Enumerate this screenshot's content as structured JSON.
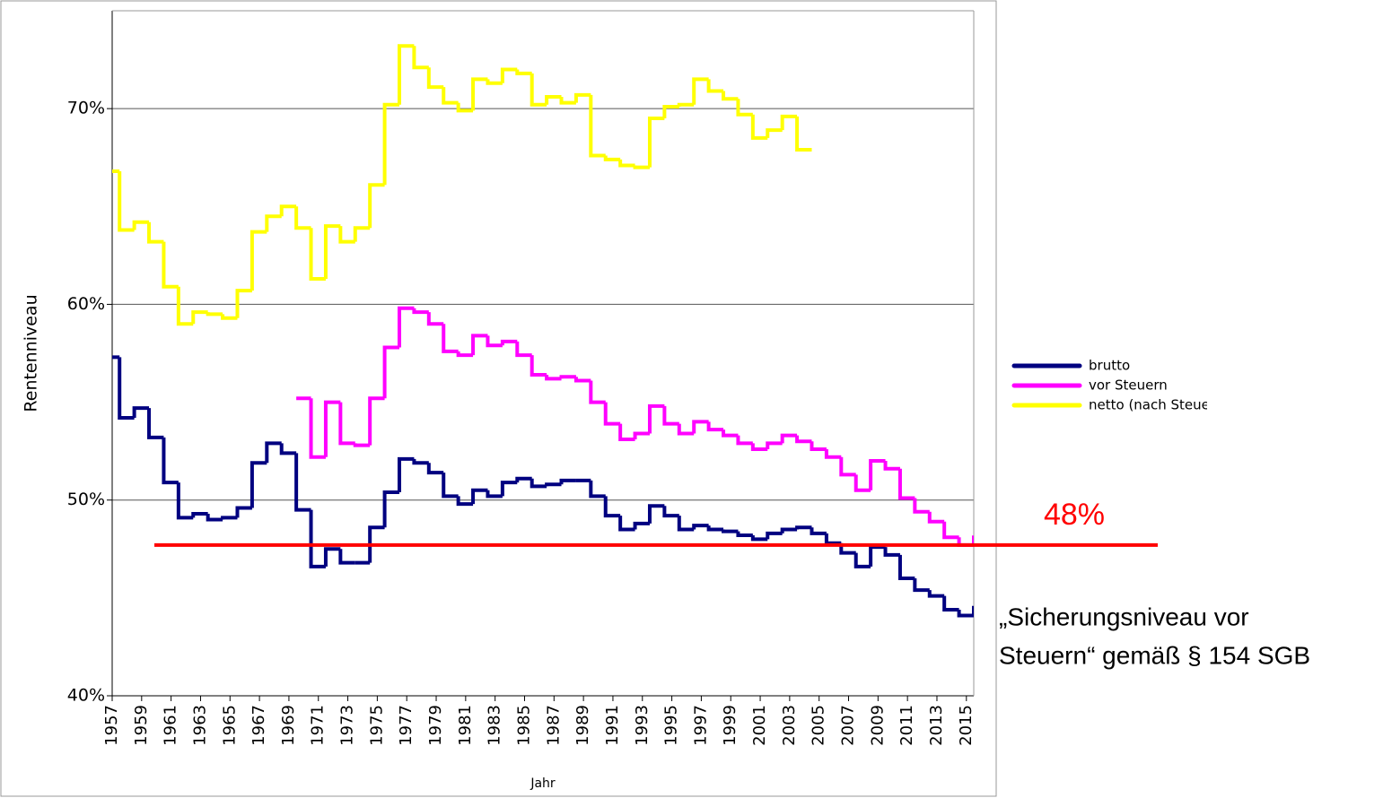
{
  "chart_data": {
    "type": "step",
    "x_label": "Jahr",
    "y_label": "Rentenniveau",
    "x": [
      1957,
      1958,
      1959,
      1960,
      1961,
      1962,
      1963,
      1964,
      1965,
      1966,
      1967,
      1968,
      1969,
      1970,
      1971,
      1972,
      1973,
      1974,
      1975,
      1976,
      1977,
      1978,
      1979,
      1980,
      1981,
      1982,
      1983,
      1984,
      1985,
      1986,
      1987,
      1988,
      1989,
      1990,
      1991,
      1992,
      1993,
      1994,
      1995,
      1996,
      1997,
      1998,
      1999,
      2000,
      2001,
      2002,
      2003,
      2004,
      2005,
      2006,
      2007,
      2008,
      2009,
      2010,
      2011,
      2012,
      2013,
      2014,
      2015,
      2016
    ],
    "series": [
      {
        "name": "brutto",
        "color": "#000080",
        "values": [
          57.3,
          54.2,
          54.7,
          53.2,
          50.9,
          49.1,
          49.3,
          49.0,
          49.1,
          49.6,
          51.9,
          52.9,
          52.4,
          49.5,
          46.6,
          47.5,
          46.8,
          46.8,
          48.6,
          50.4,
          52.1,
          51.9,
          51.4,
          50.2,
          49.8,
          50.5,
          50.2,
          50.9,
          51.1,
          50.7,
          50.8,
          51.0,
          51.0,
          50.2,
          49.2,
          48.5,
          48.8,
          49.7,
          49.2,
          48.5,
          48.7,
          48.5,
          48.4,
          48.2,
          48.0,
          48.3,
          48.5,
          48.6,
          48.3,
          47.8,
          47.3,
          46.6,
          47.6,
          47.2,
          46.0,
          45.4,
          45.1,
          44.4,
          44.1,
          44.5
        ]
      },
      {
        "name": "vor Steuern",
        "color": "#ff00ff",
        "values": [
          null,
          null,
          null,
          null,
          null,
          null,
          null,
          null,
          null,
          null,
          null,
          null,
          null,
          55.2,
          52.2,
          55.0,
          52.9,
          52.8,
          55.2,
          57.8,
          59.8,
          59.6,
          59.0,
          57.6,
          57.4,
          58.4,
          57.9,
          58.1,
          57.4,
          56.4,
          56.2,
          56.3,
          56.1,
          55.0,
          53.9,
          53.1,
          53.4,
          54.8,
          53.9,
          53.4,
          54.0,
          53.6,
          53.3,
          52.9,
          52.6,
          52.9,
          53.3,
          53.0,
          52.6,
          52.2,
          51.3,
          50.5,
          52.0,
          51.6,
          50.1,
          49.4,
          48.9,
          48.1,
          47.7,
          48.1
        ]
      },
      {
        "name": "netto (nach Steuern)",
        "color": "#ffff00",
        "values": [
          66.8,
          63.8,
          64.2,
          63.2,
          60.9,
          59.0,
          59.6,
          59.5,
          59.3,
          60.7,
          63.7,
          64.5,
          65.0,
          63.9,
          61.3,
          64.0,
          63.2,
          63.9,
          66.1,
          70.2,
          73.2,
          72.1,
          71.1,
          70.3,
          69.9,
          71.5,
          71.3,
          72.0,
          71.8,
          70.2,
          70.6,
          70.3,
          70.7,
          67.6,
          67.4,
          67.1,
          67.0,
          69.5,
          70.1,
          70.2,
          71.5,
          70.9,
          70.5,
          69.7,
          68.5,
          68.9,
          69.6,
          67.9,
          null,
          null,
          null,
          null,
          null,
          null,
          null,
          null,
          null,
          null,
          null,
          null
        ]
      }
    ],
    "xlim": [
      1957,
      2015.5
    ],
    "xticks": [
      1957,
      1959,
      1961,
      1963,
      1965,
      1967,
      1969,
      1971,
      1973,
      1975,
      1977,
      1979,
      1981,
      1983,
      1985,
      1987,
      1989,
      1991,
      1993,
      1995,
      1997,
      1999,
      2001,
      2003,
      2005,
      2007,
      2009,
      2011,
      2013,
      2015
    ],
    "ylim": [
      40,
      75
    ],
    "yticks": [
      {
        "value": 40,
        "label": "40%"
      },
      {
        "value": 50,
        "label": "50%"
      },
      {
        "value": 60,
        "label": "60%"
      },
      {
        "value": 70,
        "label": "70%"
      }
    ],
    "grid": true,
    "legend": "right",
    "annotations": [
      {
        "value": 47.7,
        "label": "48%",
        "color": "#ff0000"
      },
      {
        "lines": [
          "„Sicherungsniveau vor",
          "Steuern“ gemäß § 154 SGB"
        ]
      }
    ]
  }
}
